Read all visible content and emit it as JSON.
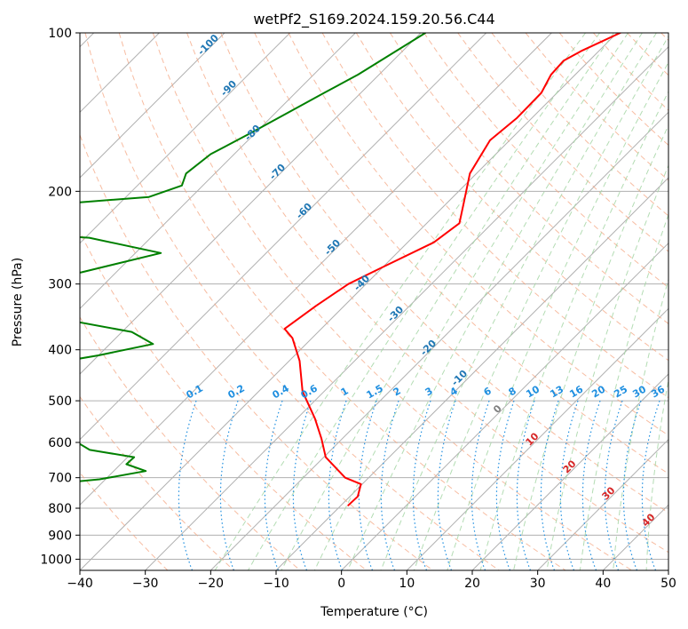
{
  "chart_data": {
    "type": "line",
    "title": "wetPf2_S169.2024.159.20.56.C44",
    "xlabel": "Temperature (°C)",
    "ylabel": "Pressure (hPa)",
    "xlim": [
      -40,
      50
    ],
    "ylim": [
      1050,
      100
    ],
    "y_scale": "log",
    "grid": true,
    "x_ticks": [
      -40,
      -30,
      -20,
      -10,
      0,
      10,
      20,
      30,
      40,
      50
    ],
    "y_ticks": [
      100,
      200,
      300,
      400,
      500,
      600,
      700,
      800,
      900,
      1000
    ],
    "skew": true,
    "colors": {
      "temperature": "#ff0000",
      "dewpoint": "#008000",
      "grid": "#b0b0b0",
      "isotherm_label": "#1f77b4",
      "dry_adiabat": "#f4a582",
      "moist_adiabat": "#a6d6a6",
      "mixing_ratio": "#1f8fe0",
      "label_red": "#d62728"
    },
    "isotherm_labels": [
      "-100",
      "-90",
      "-80",
      "-70",
      "-60",
      "-50",
      "-40",
      "-30",
      "-20",
      "-10",
      "0",
      "10",
      "20",
      "30",
      "40"
    ],
    "mixing_ratio_labels": [
      "0.1",
      "0.2",
      "0.4",
      "0.6",
      "1",
      "1.5",
      "2",
      "3",
      "4",
      "6",
      "8",
      "10",
      "13",
      "16",
      "20",
      "25",
      "30",
      "36"
    ],
    "series": [
      {
        "key": "temperature",
        "points": [
          [
            -39.5,
            100
          ],
          [
            -42.6,
            108
          ],
          [
            -43.9,
            113
          ],
          [
            -43.7,
            120
          ],
          [
            -42.4,
            130
          ],
          [
            -42.3,
            145
          ],
          [
            -43.0,
            160
          ],
          [
            -41.0,
            185
          ],
          [
            -37.5,
            210
          ],
          [
            -35.0,
            230
          ],
          [
            -36.0,
            250
          ],
          [
            -40.2,
            280
          ],
          [
            -42.7,
            300
          ],
          [
            -44.3,
            330
          ],
          [
            -45.6,
            365
          ],
          [
            -43.0,
            380
          ],
          [
            -38.4,
            420
          ],
          [
            -33.3,
            480
          ],
          [
            -27.3,
            540
          ],
          [
            -23.2,
            590
          ],
          [
            -19.7,
            640
          ],
          [
            -13.6,
            700
          ],
          [
            -10.2,
            720
          ],
          [
            -8.8,
            760
          ],
          [
            -8.9,
            790
          ]
        ]
      },
      {
        "key": "dewpoint",
        "points": [
          [
            -69.3,
            100
          ],
          [
            -73.2,
            120
          ],
          [
            -75.6,
            130
          ],
          [
            -80.7,
            155
          ],
          [
            -83.6,
            170
          ],
          [
            -84.4,
            185
          ],
          [
            -83.2,
            195
          ],
          [
            -86.5,
            205
          ],
          [
            -106.4,
            215
          ],
          [
            -116.0,
            222
          ],
          [
            -116.0,
            228
          ],
          [
            -116.5,
            235
          ],
          [
            -89.4,
            245
          ],
          [
            -76.1,
            262
          ],
          [
            -85.3,
            285
          ],
          [
            -92.5,
            300
          ],
          [
            -82.1,
            320
          ],
          [
            -84.3,
            345
          ],
          [
            -68.5,
            370
          ],
          [
            -63.4,
            390
          ],
          [
            -70.0,
            410
          ],
          [
            -78.2,
            430
          ],
          [
            -76.7,
            480
          ],
          [
            -82.2,
            510
          ],
          [
            -97.0,
            540
          ],
          [
            -94.2,
            555
          ],
          [
            -61.5,
            590
          ],
          [
            -56.9,
            620
          ],
          [
            -49.0,
            640
          ],
          [
            -49.1,
            660
          ],
          [
            -45.1,
            680
          ],
          [
            -50.9,
            705
          ],
          [
            -58.0,
            720
          ],
          [
            -64.8,
            760
          ],
          [
            -78.6,
            780
          ],
          [
            -70.2,
            785
          ],
          [
            -63.6,
            790
          ]
        ]
      }
    ]
  }
}
